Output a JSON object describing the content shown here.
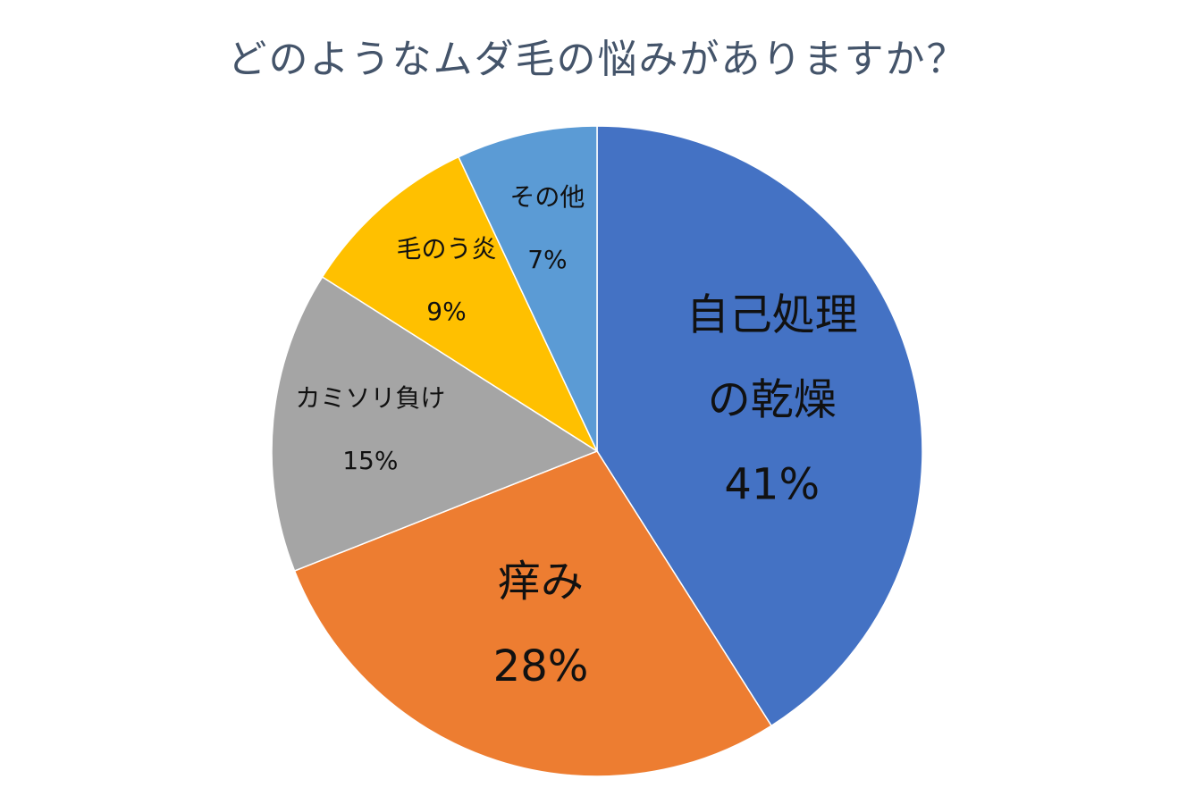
{
  "chart_data": {
    "type": "pie",
    "title": "どのようなムダ毛の悩みがありますか？",
    "categories": [
      "自己処理の乾燥",
      "痒み",
      "カミソリ負け",
      "毛のう炎",
      "その他"
    ],
    "values": [
      41,
      28,
      15,
      9,
      7
    ],
    "value_labels": [
      "41%",
      "28%",
      "15%",
      "9%",
      "7%"
    ],
    "colors": [
      "#4472c4",
      "#ed7d31",
      "#a5a5a5",
      "#ffc000",
      "#5b9bd5"
    ]
  }
}
